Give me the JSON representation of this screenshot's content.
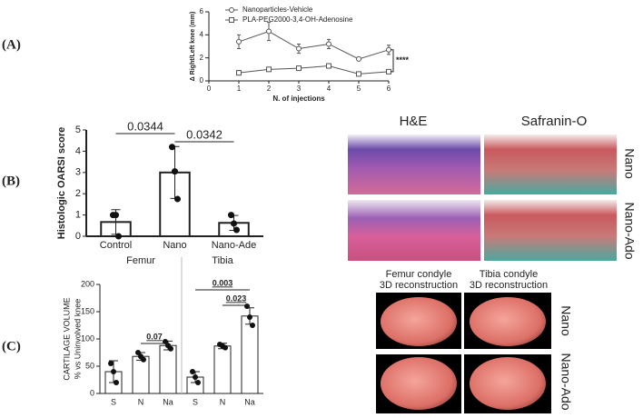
{
  "panel_labels": [
    "(A)",
    "(B)",
    "(C)"
  ],
  "chart_data": [
    {
      "type": "line",
      "x": [
        1,
        2,
        3,
        4,
        5,
        6
      ],
      "xlim": [
        0,
        6
      ],
      "xticks": [
        0,
        1,
        2,
        3,
        4,
        5,
        6
      ],
      "ylim": [
        0,
        6
      ],
      "yticks": [
        0,
        2,
        4,
        6
      ],
      "x_label": "N. of injections",
      "y_label": "Δ Right/Left knee (mm)",
      "series": [
        {
          "name": "Nanoparticles-Vehicle",
          "marker": "circle",
          "color": "#555555",
          "values": [
            3.4,
            4.3,
            2.8,
            3.2,
            1.9,
            2.7
          ],
          "errors": [
            0.6,
            0.8,
            0.4,
            0.4,
            0.15,
            0.4
          ]
        },
        {
          "name": "PLA-PEG2000-3,4-OH-Adenosine",
          "marker": "square",
          "color": "#555555",
          "values": [
            0.7,
            1.0,
            1.1,
            1.3,
            0.6,
            0.8
          ],
          "errors": [
            0.2,
            0.1,
            0.1,
            0.1,
            0.1,
            0.1
          ]
        }
      ],
      "annotation": "****"
    },
    {
      "type": "bar",
      "categories": [
        "Control",
        "Nano",
        "Nano-Ade"
      ],
      "values": [
        0.67,
        3,
        0.63
      ],
      "errors": [
        0.58,
        1.22,
        0.35
      ],
      "points": [
        [
          1,
          1,
          0
        ],
        [
          4.2,
          3.05,
          1.75
        ],
        [
          1,
          0.6,
          0.3
        ]
      ],
      "color": "#ffffff",
      "ylim": [
        0,
        5
      ],
      "yticks": [
        0,
        1,
        2,
        3,
        4,
        5
      ],
      "y_label": "Histologic OARSI score",
      "annotations": [
        {
          "text": "0.0344",
          "between": [
            0,
            1
          ]
        },
        {
          "text": "0.0342",
          "between": [
            1,
            2
          ]
        }
      ]
    },
    {
      "type": "bar",
      "group_labels": [
        "Femur",
        "Tibia"
      ],
      "categories": [
        "S",
        "N",
        "Na",
        "S",
        "N",
        "Na"
      ],
      "values": [
        40,
        68,
        88,
        30,
        87,
        142
      ],
      "errors": [
        20,
        7,
        8,
        10,
        5,
        15
      ],
      "points": [
        [
          55,
          40,
          20
        ],
        [
          75,
          68,
          62
        ],
        [
          95,
          88,
          82
        ],
        [
          40,
          30,
          20
        ],
        [
          90,
          87,
          84
        ],
        [
          160,
          140,
          125
        ]
      ],
      "color": "#ffffff",
      "ylim": [
        0,
        200
      ],
      "yticks": [
        0,
        50,
        100,
        150,
        200
      ],
      "y_label": [
        "CARTILAGE VOLUME",
        "% vs Uninvolved knee"
      ],
      "annotations": [
        {
          "text": "0.07",
          "between": [
            1,
            2
          ]
        },
        {
          "text": "0.003",
          "between": [
            3,
            5
          ]
        },
        {
          "text": "0.023",
          "between": [
            4,
            5
          ]
        }
      ]
    }
  ],
  "histology": {
    "columns": [
      "H&E",
      "Safranin-O"
    ],
    "rows": [
      "Nano",
      "Nano-Ado"
    ]
  },
  "reconstruction": {
    "columns": [
      [
        "Femur condyle",
        "3D reconstruction"
      ],
      [
        "Tibia condyle",
        "3D reconstruction"
      ]
    ],
    "rows": [
      "Nano",
      "Nano-Ado"
    ]
  }
}
